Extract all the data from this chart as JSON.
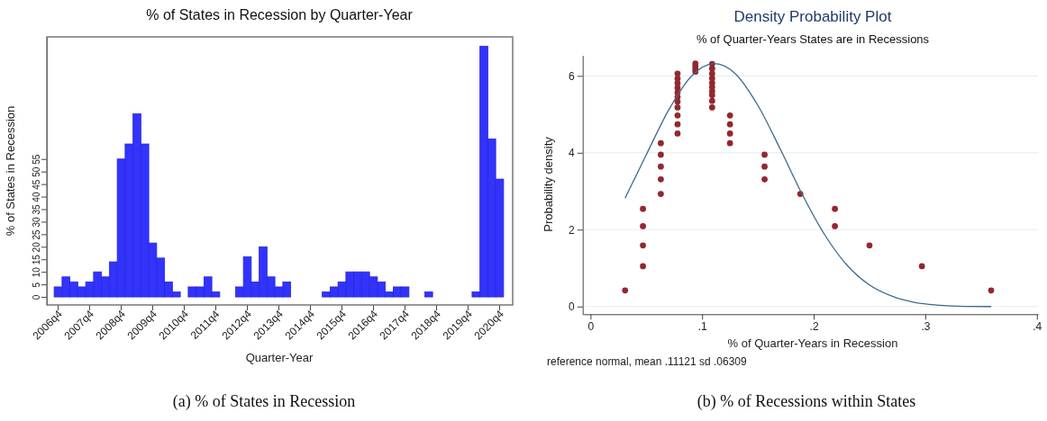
{
  "chart_data": [
    {
      "type": "bar",
      "title": "% of States in Recession by Quarter-Year",
      "xlabel": "Quarter-Year",
      "ylabel": "% of States in Recession",
      "categories": [
        "2006q4",
        null,
        null,
        null,
        "2007q4",
        null,
        null,
        null,
        "2008q4",
        null,
        null,
        null,
        "2009q4",
        null,
        null,
        null,
        "2010q4",
        null,
        null,
        null,
        "2011q4",
        null,
        null,
        null,
        "2012q4",
        null,
        null,
        null,
        "2013q4",
        null,
        null,
        null,
        "2014q4",
        null,
        null,
        null,
        "2015q4",
        null,
        null,
        null,
        "2016q4",
        null,
        null,
        null,
        "2017q4",
        null,
        null,
        null,
        "2018q4",
        null,
        null,
        null,
        "2019q4",
        null,
        null,
        null,
        "2020q4"
      ],
      "values": [
        4,
        8,
        6,
        4,
        6,
        10,
        8,
        14,
        55,
        61,
        73,
        61,
        21.5,
        15.5,
        6,
        2,
        null,
        4,
        4,
        8,
        2,
        null,
        null,
        4,
        16,
        6,
        20,
        8,
        4,
        6,
        null,
        null,
        null,
        null,
        2,
        4,
        6,
        10,
        10,
        10,
        8,
        6,
        2,
        4,
        4,
        null,
        null,
        2,
        null,
        null,
        null,
        null,
        null,
        2,
        100,
        63,
        47
      ],
      "color": "#3333ff",
      "ylim": [
        -3.2,
        103.7
      ],
      "yticks": [
        0,
        5,
        10,
        15,
        20,
        25,
        30,
        35,
        40,
        45,
        50,
        55
      ],
      "grid": false,
      "annotations": [
        "(a) % of States in Recession"
      ]
    },
    {
      "type": "scatter",
      "title": "Density Probability Plot",
      "subtitle": "% of Quarter-Years States are in Recessions",
      "xlabel": "% of Quarter-Years in Recession",
      "ylabel": "Probability density",
      "series": [
        {
          "type": "scatter",
          "marker": "circle",
          "color": "#93282e",
          "x": [
            0.031,
            0.047,
            0.047,
            0.047,
            0.047,
            0.063,
            0.063,
            0.063,
            0.063,
            0.063,
            0.078,
            0.078,
            0.078,
            0.078,
            0.078,
            0.078,
            0.078,
            0.078,
            0.078,
            0.078,
            0.078,
            0.094,
            0.094,
            0.094,
            0.094,
            0.109,
            0.109,
            0.109,
            0.109,
            0.109,
            0.109,
            0.109,
            0.109,
            0.109,
            0.109,
            0.125,
            0.125,
            0.125,
            0.125,
            0.156,
            0.156,
            0.156,
            0.188,
            0.219,
            0.219,
            0.25,
            0.297,
            0.359
          ],
          "values": [
            0.42,
            2.54,
            2.09,
            1.59,
            1.05,
            4.25,
            3.95,
            3.64,
            3.31,
            2.93,
            6.06,
            5.93,
            5.81,
            5.69,
            5.57,
            5.45,
            5.33,
            5.18,
            4.97,
            4.74,
            4.5,
            6.32,
            6.25,
            6.18,
            6.11,
            6.31,
            6.19,
            6.06,
            5.94,
            5.82,
            5.71,
            5.6,
            5.5,
            5.35,
            5.18,
            4.97,
            4.74,
            4.5,
            4.25,
            3.95,
            3.64,
            3.31,
            2.93,
            2.54,
            2.09,
            1.59,
            1.05,
            0.42
          ]
        },
        {
          "type": "line",
          "color": "#3d6a8c",
          "x": [
            0.031,
            0.05,
            0.07,
            0.09,
            0.111,
            0.13,
            0.15,
            0.17,
            0.19,
            0.21,
            0.23,
            0.25,
            0.27,
            0.29,
            0.31,
            0.33,
            0.359
          ],
          "values": [
            2.82,
            3.95,
            5.11,
            5.98,
            6.32,
            6.05,
            5.23,
            4.1,
            2.9,
            1.86,
            1.07,
            0.56,
            0.27,
            0.11,
            0.04,
            0.01,
            0
          ]
        }
      ],
      "xlim": [
        -0.007,
        0.401
      ],
      "xticks": [
        0,
        {
          "value": 0.1,
          "label": ".1"
        },
        {
          "value": 0.2,
          "label": ".2"
        },
        {
          "value": 0.3,
          "label": ".3"
        },
        {
          "value": 0.4,
          "label": ".4"
        }
      ],
      "ylim": [
        -0.2,
        6.53
      ],
      "yticks": [
        0,
        2,
        4,
        6
      ],
      "grid": "y",
      "annotations": [
        "reference normal, mean .11121 sd .06309",
        "(b) % of Recessions within States"
      ]
    }
  ]
}
